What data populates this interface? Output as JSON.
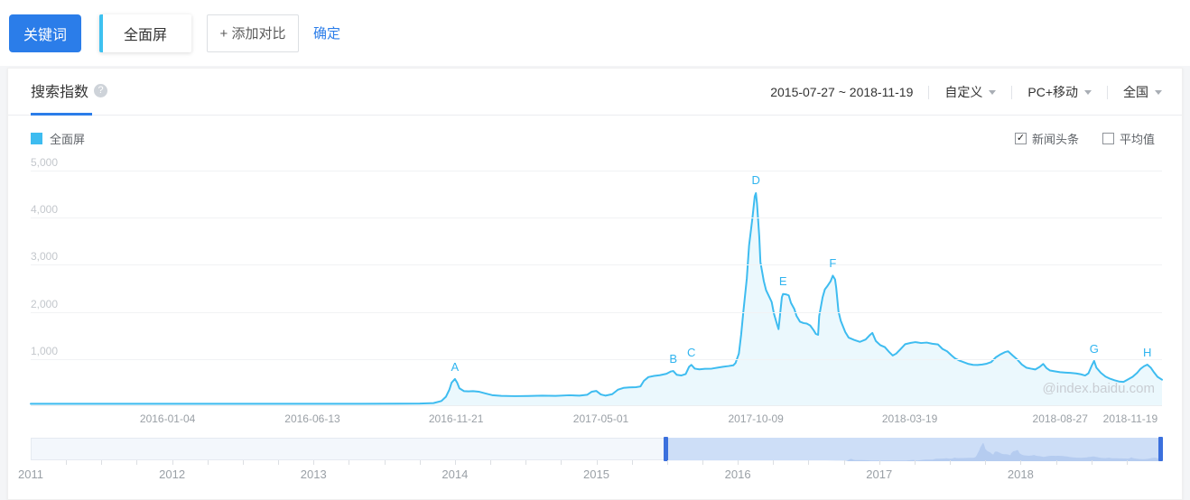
{
  "toolbar": {
    "keyword_label": "关键词",
    "keyword_value": "全面屏",
    "add_compare_label": "+ 添加对比",
    "confirm_label": "确定"
  },
  "panel": {
    "tab": "搜索指数",
    "help_icon": "question-circle-icon",
    "date_range": "2015-07-27 ~ 2018-11-19",
    "filters": [
      {
        "label": "自定义"
      },
      {
        "label": "PC+移动"
      },
      {
        "label": "全国"
      }
    ],
    "legend": {
      "series_label": "全面屏",
      "series_color": "#3ebcf0"
    },
    "options": [
      {
        "label": "新闻头条",
        "checked": true
      },
      {
        "label": "平均值",
        "checked": false
      }
    ],
    "watermark": "@index.baidu.com"
  },
  "chart_data": {
    "type": "area",
    "title": "搜索指数 - 全面屏",
    "line_color": "#3ebcf0",
    "fill_color": "rgba(62,188,240,0.10)",
    "grid": true,
    "ylim": [
      0,
      5134
    ],
    "yticks": [
      1000,
      2000,
      3000,
      4000,
      5000
    ],
    "ytick_labels": [
      "1,000",
      "2,000",
      "3,000",
      "4,000",
      "5,000"
    ],
    "xticks": [
      {
        "label": "2016-01-04",
        "f": 0.121
      },
      {
        "label": "2016-06-13",
        "f": 0.249
      },
      {
        "label": "2016-11-21",
        "f": 0.376
      },
      {
        "label": "2017-05-01",
        "f": 0.504
      },
      {
        "label": "2017-10-09",
        "f": 0.641
      },
      {
        "label": "2018-03-19",
        "f": 0.777
      },
      {
        "label": "2018-08-27",
        "f": 0.91
      },
      {
        "label": "2018-11-19",
        "f": 0.972
      }
    ],
    "markers": [
      {
        "label": "A",
        "f": 0.375,
        "value": 560
      },
      {
        "label": "B",
        "f": 0.568,
        "value": 730
      },
      {
        "label": "C",
        "f": 0.584,
        "value": 860
      },
      {
        "label": "D",
        "f": 0.641,
        "value": 4520
      },
      {
        "label": "E",
        "f": 0.665,
        "value": 2370
      },
      {
        "label": "F",
        "f": 0.709,
        "value": 2760
      },
      {
        "label": "G",
        "f": 0.94,
        "value": 945
      },
      {
        "label": "H",
        "f": 0.987,
        "value": 865
      }
    ],
    "points": [
      [
        0,
        30
      ],
      [
        0.022,
        30
      ],
      [
        0.053,
        30
      ],
      [
        0.093,
        30
      ],
      [
        0.133,
        30
      ],
      [
        0.173,
        30
      ],
      [
        0.213,
        30
      ],
      [
        0.253,
        30
      ],
      [
        0.292,
        30
      ],
      [
        0.324,
        32
      ],
      [
        0.344,
        36
      ],
      [
        0.356,
        46
      ],
      [
        0.363,
        90
      ],
      [
        0.367,
        180
      ],
      [
        0.37,
        330
      ],
      [
        0.372,
        480
      ],
      [
        0.375,
        560
      ],
      [
        0.377,
        480
      ],
      [
        0.379,
        360
      ],
      [
        0.383,
        300
      ],
      [
        0.387,
        295
      ],
      [
        0.391,
        300
      ],
      [
        0.396,
        290
      ],
      [
        0.402,
        250
      ],
      [
        0.408,
        215
      ],
      [
        0.416,
        200
      ],
      [
        0.428,
        193
      ],
      [
        0.44,
        198
      ],
      [
        0.452,
        205
      ],
      [
        0.464,
        200
      ],
      [
        0.476,
        212
      ],
      [
        0.485,
        205
      ],
      [
        0.492,
        225
      ],
      [
        0.496,
        290
      ],
      [
        0.5,
        305
      ],
      [
        0.504,
        230
      ],
      [
        0.508,
        205
      ],
      [
        0.514,
        235
      ],
      [
        0.519,
        330
      ],
      [
        0.524,
        370
      ],
      [
        0.529,
        380
      ],
      [
        0.535,
        385
      ],
      [
        0.539,
        400
      ],
      [
        0.542,
        520
      ],
      [
        0.546,
        600
      ],
      [
        0.551,
        625
      ],
      [
        0.556,
        640
      ],
      [
        0.562,
        670
      ],
      [
        0.566,
        720
      ],
      [
        0.568,
        730
      ],
      [
        0.571,
        650
      ],
      [
        0.575,
        635
      ],
      [
        0.579,
        665
      ],
      [
        0.582,
        820
      ],
      [
        0.584,
        860
      ],
      [
        0.587,
        780
      ],
      [
        0.591,
        765
      ],
      [
        0.596,
        775
      ],
      [
        0.602,
        780
      ],
      [
        0.607,
        800
      ],
      [
        0.612,
        820
      ],
      [
        0.617,
        835
      ],
      [
        0.621,
        850
      ],
      [
        0.623,
        900
      ],
      [
        0.626,
        1100
      ],
      [
        0.628,
        1500
      ],
      [
        0.63,
        2000
      ],
      [
        0.633,
        2700
      ],
      [
        0.635,
        3400
      ],
      [
        0.638,
        4000
      ],
      [
        0.64,
        4450
      ],
      [
        0.641,
        4520
      ],
      [
        0.642,
        4300
      ],
      [
        0.644,
        3600
      ],
      [
        0.645,
        3050
      ],
      [
        0.648,
        2650
      ],
      [
        0.65,
        2450
      ],
      [
        0.653,
        2300
      ],
      [
        0.655,
        2200
      ],
      [
        0.657,
        1950
      ],
      [
        0.66,
        1700
      ],
      [
        0.661,
        1620
      ],
      [
        0.664,
        2300
      ],
      [
        0.665,
        2370
      ],
      [
        0.668,
        2360
      ],
      [
        0.67,
        2340
      ],
      [
        0.672,
        2180
      ],
      [
        0.675,
        2050
      ],
      [
        0.677,
        1900
      ],
      [
        0.68,
        1780
      ],
      [
        0.683,
        1750
      ],
      [
        0.686,
        1740
      ],
      [
        0.689,
        1700
      ],
      [
        0.692,
        1600
      ],
      [
        0.694,
        1520
      ],
      [
        0.696,
        1500
      ],
      [
        0.697,
        1900
      ],
      [
        0.7,
        2300
      ],
      [
        0.702,
        2470
      ],
      [
        0.704,
        2530
      ],
      [
        0.707,
        2640
      ],
      [
        0.709,
        2760
      ],
      [
        0.711,
        2680
      ],
      [
        0.712,
        2500
      ],
      [
        0.714,
        2000
      ],
      [
        0.716,
        1800
      ],
      [
        0.72,
        1560
      ],
      [
        0.723,
        1440
      ],
      [
        0.728,
        1390
      ],
      [
        0.733,
        1350
      ],
      [
        0.738,
        1400
      ],
      [
        0.742,
        1500
      ],
      [
        0.744,
        1540
      ],
      [
        0.747,
        1370
      ],
      [
        0.751,
        1280
      ],
      [
        0.755,
        1240
      ],
      [
        0.759,
        1130
      ],
      [
        0.762,
        1060
      ],
      [
        0.765,
        1100
      ],
      [
        0.769,
        1200
      ],
      [
        0.773,
        1300
      ],
      [
        0.778,
        1330
      ],
      [
        0.782,
        1345
      ],
      [
        0.787,
        1325
      ],
      [
        0.792,
        1335
      ],
      [
        0.797,
        1310
      ],
      [
        0.802,
        1295
      ],
      [
        0.806,
        1200
      ],
      [
        0.81,
        1150
      ],
      [
        0.814,
        1060
      ],
      [
        0.817,
        1000
      ],
      [
        0.821,
        950
      ],
      [
        0.825,
        915
      ],
      [
        0.829,
        880
      ],
      [
        0.833,
        860
      ],
      [
        0.837,
        858
      ],
      [
        0.841,
        868
      ],
      [
        0.845,
        885
      ],
      [
        0.849,
        920
      ],
      [
        0.853,
        1020
      ],
      [
        0.857,
        1080
      ],
      [
        0.861,
        1130
      ],
      [
        0.864,
        1150
      ],
      [
        0.868,
        1060
      ],
      [
        0.872,
        975
      ],
      [
        0.876,
        870
      ],
      [
        0.88,
        800
      ],
      [
        0.884,
        780
      ],
      [
        0.888,
        762
      ],
      [
        0.892,
        820
      ],
      [
        0.895,
        880
      ],
      [
        0.898,
        790
      ],
      [
        0.901,
        740
      ],
      [
        0.905,
        725
      ],
      [
        0.91,
        705
      ],
      [
        0.915,
        695
      ],
      [
        0.919,
        690
      ],
      [
        0.924,
        678
      ],
      [
        0.928,
        660
      ],
      [
        0.932,
        635
      ],
      [
        0.935,
        680
      ],
      [
        0.938,
        850
      ],
      [
        0.94,
        945
      ],
      [
        0.942,
        800
      ],
      [
        0.946,
        690
      ],
      [
        0.95,
        612
      ],
      [
        0.954,
        565
      ],
      [
        0.958,
        532
      ],
      [
        0.962,
        505
      ],
      [
        0.966,
        498
      ],
      [
        0.97,
        550
      ],
      [
        0.974,
        605
      ],
      [
        0.978,
        690
      ],
      [
        0.981,
        775
      ],
      [
        0.984,
        830
      ],
      [
        0.987,
        865
      ],
      [
        0.99,
        800
      ],
      [
        0.993,
        700
      ],
      [
        0.996,
        605
      ],
      [
        1,
        545
      ]
    ]
  },
  "timeline": {
    "years": [
      "2011",
      "2012",
      "2013",
      "2014",
      "2015",
      "2016",
      "2017",
      "2018"
    ],
    "range_start_frac": 0.561,
    "range_end_frac": 1.0,
    "selected_color": "#cddef7",
    "handle_color": "#3b70dd",
    "minimap_color": "#b5ccf0"
  }
}
